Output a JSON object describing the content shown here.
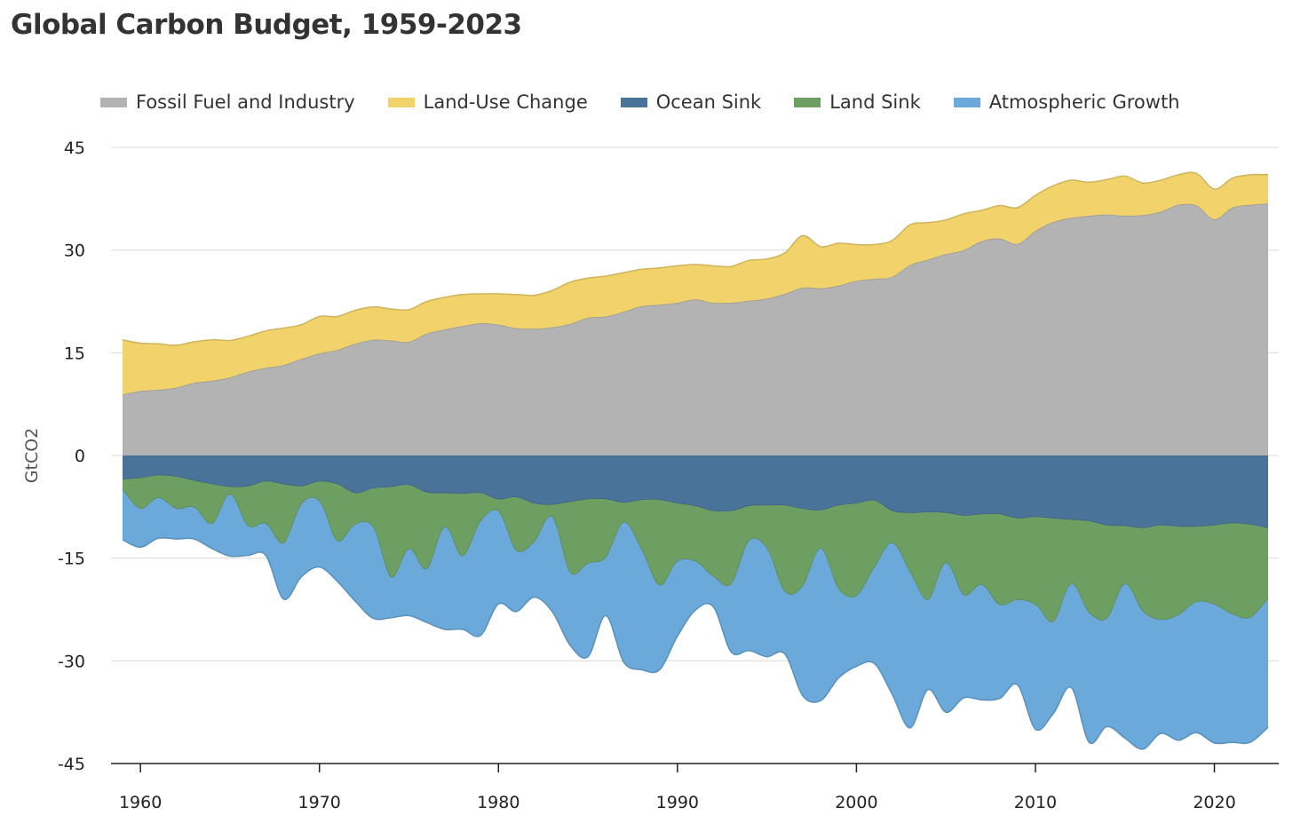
{
  "chart_data": {
    "type": "area",
    "title": "Global Carbon Budget, 1959-2023",
    "ylabel": "GtCO2",
    "xlabel": "",
    "ylim": [
      -45,
      45
    ],
    "xlim": [
      1959,
      2023
    ],
    "yticks": [
      45,
      30,
      15,
      0,
      -15,
      -30,
      -45
    ],
    "ytick_labels": [
      "45",
      "30",
      "15",
      "0",
      "-15",
      "-30",
      "-45"
    ],
    "xticks": [
      1960,
      1970,
      1980,
      1990,
      2000,
      2010,
      2020
    ],
    "xtick_labels": [
      "1960",
      "1970",
      "1980",
      "1990",
      "2000",
      "2010",
      "2020"
    ],
    "grid": "horizontal",
    "legend_position": "top",
    "x": [
      1959,
      1960,
      1961,
      1962,
      1963,
      1964,
      1965,
      1966,
      1967,
      1968,
      1969,
      1970,
      1971,
      1972,
      1973,
      1974,
      1975,
      1976,
      1977,
      1978,
      1979,
      1980,
      1981,
      1982,
      1983,
      1984,
      1985,
      1986,
      1987,
      1988,
      1989,
      1990,
      1991,
      1992,
      1993,
      1994,
      1995,
      1996,
      1997,
      1998,
      1999,
      2000,
      2001,
      2002,
      2003,
      2004,
      2005,
      2006,
      2007,
      2008,
      2009,
      2010,
      2011,
      2012,
      2013,
      2014,
      2015,
      2016,
      2017,
      2018,
      2019,
      2020,
      2021,
      2022,
      2023
    ],
    "series": [
      {
        "name": "Fossil Fuel and Industry",
        "color": "#b3b3b3",
        "stack": "positive",
        "values": [
          8.9,
          9.4,
          9.6,
          9.9,
          10.6,
          10.9,
          11.4,
          12.2,
          12.8,
          13.2,
          14.1,
          14.9,
          15.4,
          16.3,
          16.9,
          16.8,
          16.6,
          17.8,
          18.4,
          18.9,
          19.3,
          19.1,
          18.6,
          18.5,
          18.7,
          19.2,
          20.1,
          20.3,
          21.0,
          21.8,
          22.0,
          22.3,
          22.8,
          22.3,
          22.3,
          22.6,
          22.9,
          23.6,
          24.5,
          24.4,
          24.8,
          25.5,
          25.8,
          26.1,
          27.8,
          28.6,
          29.4,
          30.0,
          31.3,
          31.7,
          30.9,
          32.8,
          34.1,
          34.7,
          35.0,
          35.2,
          35.0,
          35.1,
          35.6,
          36.6,
          36.5,
          34.5,
          36.2,
          36.6,
          36.8
        ]
      },
      {
        "name": "Land-Use Change",
        "color": "#f2d36b",
        "stack": "positive",
        "values": [
          8.0,
          7.0,
          6.7,
          6.2,
          6.0,
          6.0,
          5.4,
          5.2,
          5.4,
          5.4,
          5.0,
          5.4,
          4.9,
          4.9,
          4.8,
          4.6,
          4.7,
          4.7,
          4.7,
          4.6,
          4.3,
          4.5,
          4.9,
          4.9,
          5.4,
          6.1,
          5.8,
          5.9,
          5.7,
          5.4,
          5.4,
          5.4,
          5.1,
          5.4,
          5.3,
          5.9,
          5.8,
          6.0,
          7.6,
          6.1,
          6.2,
          5.3,
          5.0,
          5.3,
          5.9,
          5.4,
          5.0,
          5.3,
          4.5,
          4.8,
          5.3,
          5.2,
          5.3,
          5.5,
          4.9,
          5.1,
          5.8,
          4.7,
          4.6,
          4.4,
          4.7,
          4.4,
          4.3,
          4.4,
          4.2
        ]
      },
      {
        "name": "Ocean Sink",
        "color": "#4a7399",
        "stack": "negative",
        "values": [
          -3.5,
          -3.3,
          -2.9,
          -3.1,
          -3.7,
          -4.2,
          -4.6,
          -4.5,
          -3.8,
          -4.2,
          -4.5,
          -3.8,
          -4.2,
          -5.5,
          -4.8,
          -4.6,
          -4.3,
          -5.4,
          -5.5,
          -5.6,
          -5.5,
          -6.4,
          -6.1,
          -7.0,
          -7.2,
          -6.8,
          -6.4,
          -6.4,
          -6.9,
          -6.5,
          -6.5,
          -7.0,
          -7.4,
          -8.1,
          -8.1,
          -7.4,
          -7.3,
          -7.3,
          -7.8,
          -8.0,
          -7.3,
          -7.0,
          -6.6,
          -8.1,
          -8.4,
          -8.3,
          -8.4,
          -8.8,
          -8.6,
          -8.6,
          -9.2,
          -9.0,
          -9.2,
          -9.4,
          -9.6,
          -10.2,
          -10.3,
          -10.6,
          -10.2,
          -10.4,
          -10.4,
          -10.2,
          -9.9,
          -10.1,
          -10.6
        ]
      },
      {
        "name": "Land Sink",
        "color": "#6e9f62",
        "stack": "negative",
        "values": [
          -1.5,
          -4.5,
          -3.3,
          -4.7,
          -3.9,
          -5.8,
          -1.1,
          -5.8,
          -6.2,
          -8.6,
          -2.6,
          -2.9,
          -8.3,
          -4.6,
          -5.7,
          -13.2,
          -9.4,
          -11.2,
          -5.0,
          -9.1,
          -4.2,
          -1.8,
          -7.8,
          -5.6,
          -1.8,
          -10.3,
          -9.4,
          -8.5,
          -2.9,
          -7.3,
          -12.5,
          -8.5,
          -8.1,
          -9.6,
          -10.7,
          -5.1,
          -6.3,
          -12.6,
          -11.3,
          -5.6,
          -12.2,
          -13.5,
          -9.8,
          -4.7,
          -8.7,
          -12.8,
          -7.3,
          -11.6,
          -10.3,
          -13.2,
          -11.9,
          -12.8,
          -15.1,
          -9.4,
          -13.4,
          -13.6,
          -8.5,
          -12.2,
          -13.8,
          -12.9,
          -11.0,
          -11.6,
          -13.3,
          -13.6,
          -10.3
        ]
      },
      {
        "name": "Atmospheric Growth",
        "color": "#6aa9d9",
        "stack": "negative",
        "values": [
          -7.3,
          -5.6,
          -5.9,
          -4.4,
          -4.6,
          -3.6,
          -9.0,
          -4.3,
          -4.6,
          -8.2,
          -10.6,
          -9.6,
          -5.9,
          -11.2,
          -13.3,
          -5.9,
          -9.7,
          -7.8,
          -14.9,
          -10.7,
          -16.6,
          -13.5,
          -8.9,
          -8.1,
          -13.8,
          -10.6,
          -13.6,
          -8.5,
          -20.4,
          -17.5,
          -12.3,
          -10.9,
          -7.1,
          -4.4,
          -9.9,
          -16.0,
          -15.8,
          -9.1,
          -16.0,
          -22.2,
          -13.0,
          -10.3,
          -14.0,
          -22.1,
          -22.7,
          -13.1,
          -21.8,
          -15.0,
          -16.8,
          -13.7,
          -12.4,
          -18.2,
          -13.4,
          -15.1,
          -18.9,
          -15.8,
          -22.5,
          -20.1,
          -16.6,
          -18.3,
          -19.1,
          -20.2,
          -18.7,
          -18.2,
          -18.8
        ]
      }
    ]
  }
}
